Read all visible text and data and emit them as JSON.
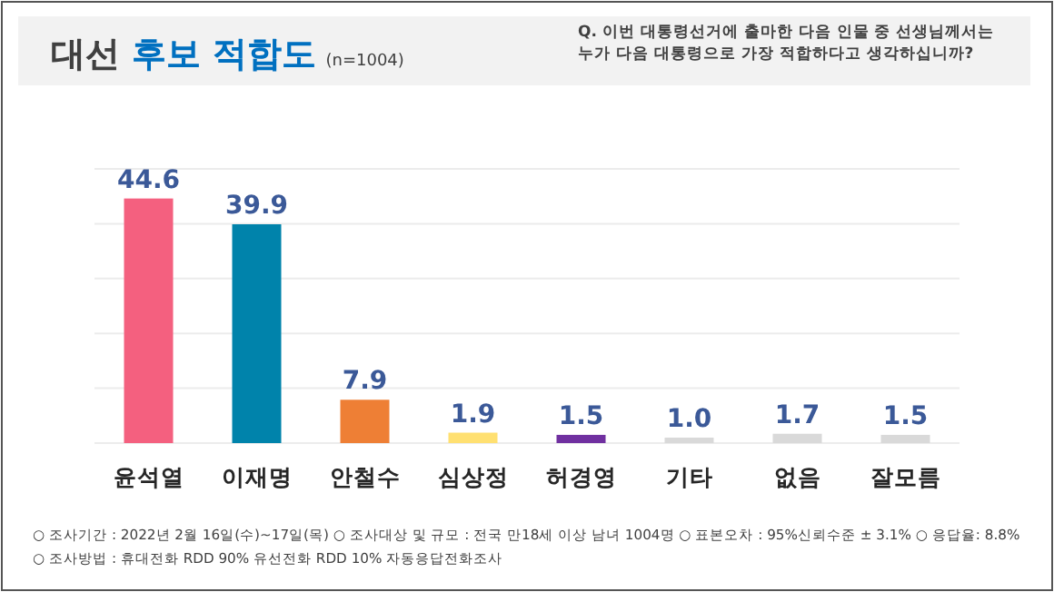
{
  "chart_data": {
    "type": "bar",
    "title": "대선 후보 적합도",
    "subtitle": "(n=1004)",
    "annotations": [
      "Q. 이번 대통령선거에 출마한 다음 인물 중 선생님께서는 누가 다음 대통령으로 가장 적합하다고 생각하십니까?",
      "○ 조사기간 : 2022년 2월 16일(수)~17일(목)     ○ 조사대상 및 규모 : 전국 만18세 이상 남녀 1004명     ○ 표본오차 : 95%신뢰수준 ± 3.1%  ○ 응답율: 8.8%",
      "○ 조사방법 : 휴대전화 RDD 90% 유선전화 RDD 10% 자동응답전화조사"
    ],
    "categories": [
      "윤석열",
      "이재명",
      "안철수",
      "심상정",
      "허경영",
      "기타",
      "없음",
      "잘모름"
    ],
    "values": [
      44.6,
      39.9,
      7.9,
      1.9,
      1.5,
      1.0,
      1.7,
      1.5
    ],
    "colors": [
      "#f4607f",
      "#0083ab",
      "#ee7f35",
      "#ffe071",
      "#7030a0",
      "#d9d9d9",
      "#d9d9d9",
      "#d9d9d9"
    ],
    "ylim": [
      0,
      50
    ],
    "yticks": [
      {
        "value": 0,
        "label": null
      },
      {
        "value": 10,
        "label": null
      },
      {
        "value": 20,
        "label": null
      },
      {
        "value": 30,
        "label": null
      },
      {
        "value": 40,
        "label": null
      },
      {
        "value": 50,
        "label": null
      }
    ],
    "value_labels": [
      "44.6",
      "39.9",
      "7.9",
      "1.9",
      "1.5",
      "1.0",
      "1.7",
      "1.5"
    ],
    "grid": "y"
  }
}
